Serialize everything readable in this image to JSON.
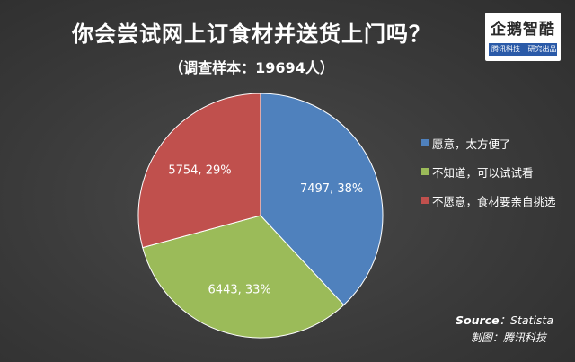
{
  "header": {
    "title": "你会尝试网上订食材并送货上门吗？",
    "subtitle": "（调查样本：19694人）"
  },
  "logo": {
    "name": "企鹅智酷",
    "tagline_left": "腾讯科技",
    "tagline_right": "研究出品"
  },
  "chart_data": {
    "type": "pie",
    "title": "你会尝试网上订食材并送货上门吗？",
    "subtitle": "（调查样本：19694人）",
    "categories": [
      "愿意，太方便了",
      "不知道，可以试试看",
      "不愿意，食材要亲自挑选"
    ],
    "values": [
      7497,
      6443,
      5754
    ],
    "percents": [
      38,
      33,
      29
    ],
    "labels": [
      "7497, 38%",
      "6443, 33%",
      "5754, 29%"
    ],
    "colors": [
      "#4f81bd",
      "#9bbb59",
      "#c0504d"
    ],
    "start_angle_deg": 0,
    "direction": "clockwise",
    "legend_position": "right"
  },
  "footer": {
    "source_label": "Source",
    "source_value": "：Statista",
    "maker": "制图：腾讯科技"
  }
}
